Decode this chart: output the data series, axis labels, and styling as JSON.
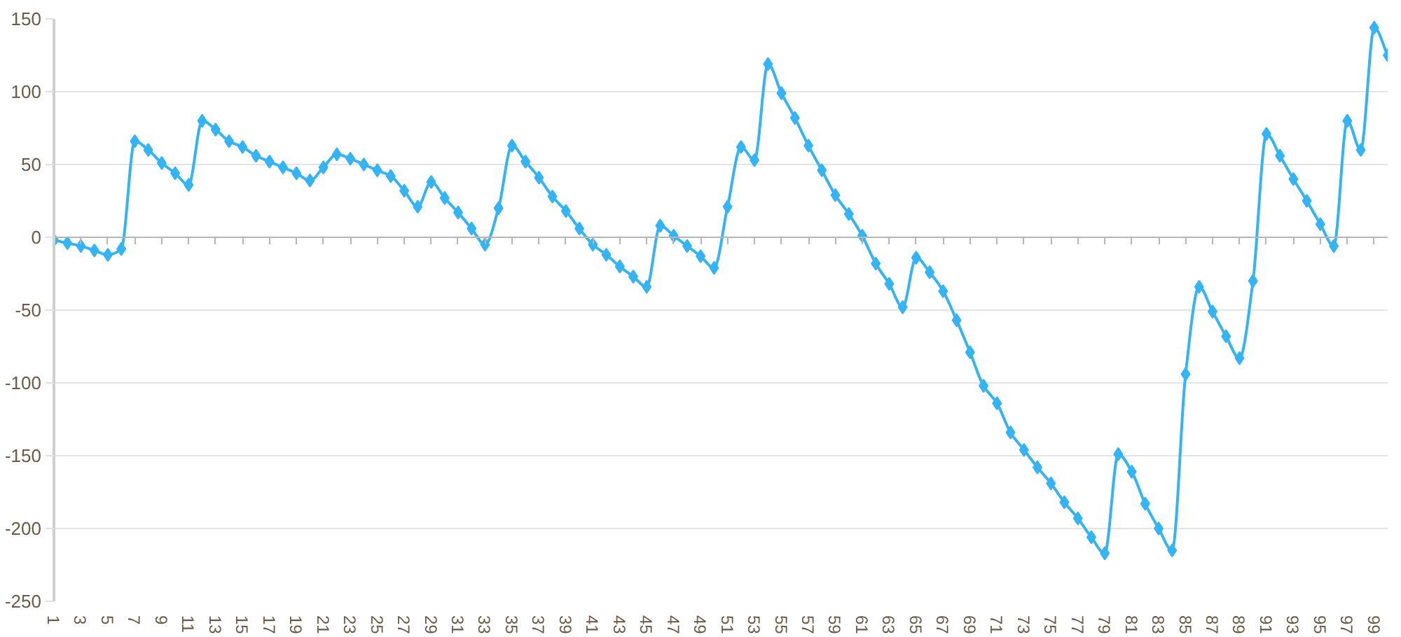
{
  "chart_data": {
    "type": "line",
    "x": [
      1,
      2,
      3,
      4,
      5,
      6,
      7,
      8,
      9,
      10,
      11,
      12,
      13,
      14,
      15,
      16,
      17,
      18,
      19,
      20,
      21,
      22,
      23,
      24,
      25,
      26,
      27,
      28,
      29,
      30,
      31,
      32,
      33,
      34,
      35,
      36,
      37,
      38,
      39,
      40,
      41,
      42,
      43,
      44,
      45,
      46,
      47,
      48,
      49,
      50,
      51,
      52,
      53,
      54,
      55,
      56,
      57,
      58,
      59,
      60,
      61,
      62,
      63,
      64,
      65,
      66,
      67,
      68,
      69,
      70,
      71,
      72,
      73,
      74,
      75,
      76,
      77,
      78,
      79,
      80,
      81,
      82,
      83,
      84,
      85,
      86,
      87,
      88,
      89,
      90,
      91,
      92,
      93,
      94,
      95,
      96,
      97,
      98,
      99,
      100
    ],
    "values": [
      -2,
      -4,
      -6,
      -9,
      -12,
      -8,
      66,
      60,
      51,
      44,
      36,
      80,
      74,
      66,
      62,
      56,
      52,
      48,
      44,
      39,
      48,
      57,
      54,
      50,
      46,
      42,
      32,
      21,
      38,
      27,
      17,
      6,
      -5,
      20,
      63,
      52,
      41,
      28,
      18,
      6,
      -5,
      -12,
      -20,
      -27,
      -34,
      8,
      1,
      -6,
      -13,
      -21,
      21,
      62,
      53,
      119,
      99,
      82,
      63,
      46,
      29,
      16,
      1,
      -18,
      -32,
      -48,
      -14,
      -24,
      -37,
      -57,
      -79,
      -102,
      -114,
      -134,
      -146,
      -158,
      -169,
      -182,
      -193,
      -206,
      -217,
      -149,
      -161,
      -183,
      -200,
      -215,
      -94,
      -34,
      -51,
      -68,
      -83,
      -30,
      71,
      56,
      40,
      25,
      9,
      -6,
      80,
      60,
      144,
      125
    ],
    "color": "#35b4f4",
    "marker": "diamond",
    "line_style": "solid",
    "xlim": [
      1,
      100
    ],
    "xticks": [
      1,
      3,
      5,
      7,
      9,
      11,
      13,
      15,
      17,
      19,
      21,
      23,
      25,
      27,
      29,
      31,
      33,
      35,
      37,
      39,
      41,
      43,
      45,
      47,
      49,
      51,
      53,
      55,
      57,
      59,
      61,
      63,
      65,
      67,
      69,
      71,
      73,
      75,
      77,
      79,
      81,
      83,
      85,
      87,
      89,
      91,
      93,
      95,
      97,
      99
    ],
    "ylim": [
      -250,
      150
    ],
    "yticks": [
      -250,
      -200,
      -150,
      -100,
      -50,
      0,
      50,
      100,
      150
    ],
    "grid": "y"
  }
}
